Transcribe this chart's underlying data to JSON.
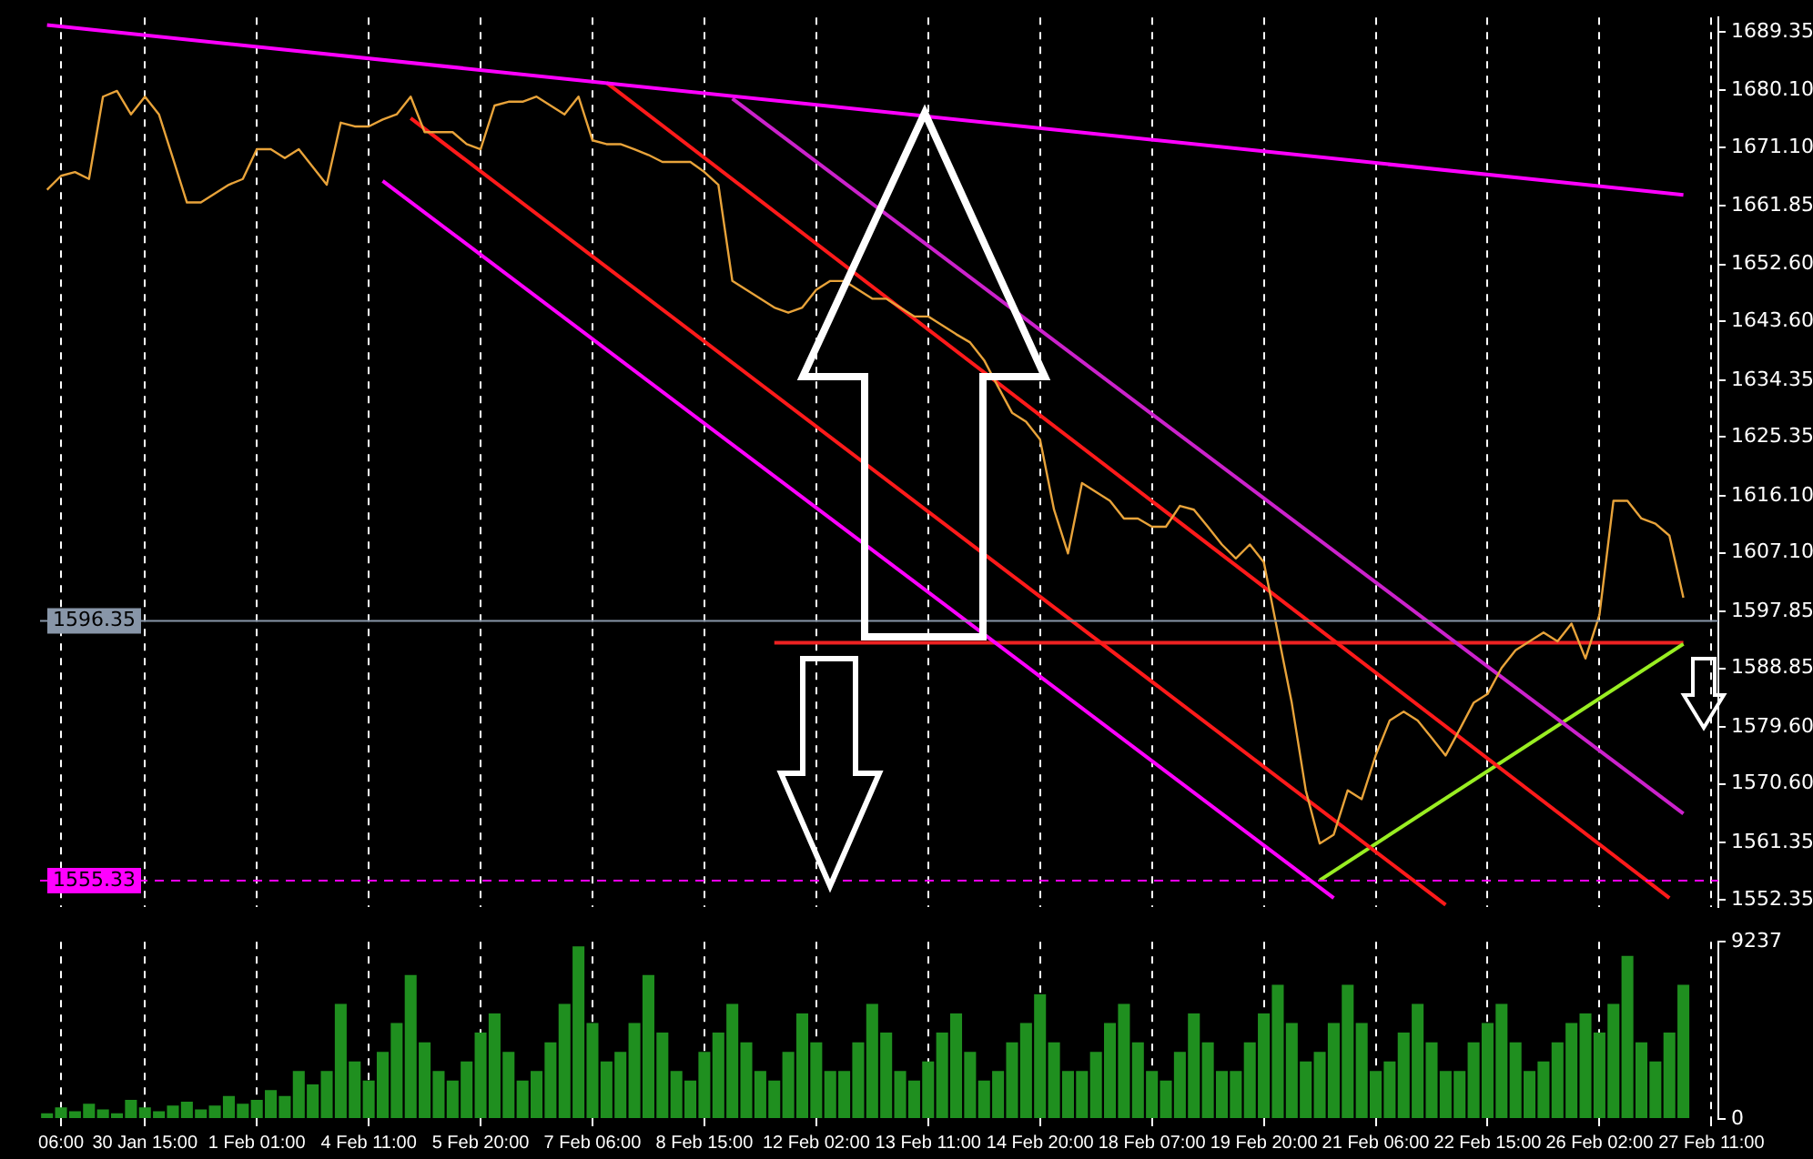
{
  "chart_data": [
    {
      "type": "line",
      "marker": "none",
      "grid": "x",
      "tick_labels": "y",
      "ylim": [
        1551.2,
        1691.6
      ],
      "yticks": [
        {
          "value": 1552.35,
          "label": "1552.35"
        },
        {
          "value": 1561.35,
          "label": "1561.35"
        },
        {
          "value": 1570.6,
          "label": "1570.60"
        },
        {
          "value": 1579.6,
          "label": "1579.60"
        },
        {
          "value": 1588.85,
          "label": "1588.85"
        },
        {
          "value": 1597.85,
          "label": "1597.85"
        },
        {
          "value": 1607.1,
          "label": "1607.10"
        },
        {
          "value": 1616.1,
          "label": "1616.10"
        },
        {
          "value": 1625.35,
          "label": "1625.35"
        },
        {
          "value": 1634.35,
          "label": "1634.35"
        },
        {
          "value": 1643.6,
          "label": "1643.60"
        },
        {
          "value": 1652.6,
          "label": "1652.60"
        },
        {
          "value": 1661.85,
          "label": "1661.85"
        },
        {
          "value": 1671.1,
          "label": "1671.10"
        },
        {
          "value": 1680.1,
          "label": "1680.10"
        },
        {
          "value": 1689.35,
          "label": "1689.35"
        }
      ],
      "series": [
        {
          "color": "#e8a33a",
          "values": [
            1664.4,
            1666.6,
            1667.2,
            1666.1,
            1679.1,
            1680.0,
            1676.3,
            1679.1,
            1676.3,
            1669.4,
            1662.4,
            1662.4,
            1663.8,
            1665.2,
            1666.1,
            1670.8,
            1670.8,
            1669.4,
            1670.8,
            1668.0,
            1665.2,
            1675.0,
            1674.4,
            1674.4,
            1675.5,
            1676.3,
            1679.1,
            1673.5,
            1673.5,
            1673.5,
            1671.6,
            1670.8,
            1677.7,
            1678.3,
            1678.3,
            1679.1,
            1677.7,
            1676.3,
            1679.1,
            1672.2,
            1671.6,
            1671.6,
            1670.8,
            1669.9,
            1668.8,
            1668.8,
            1668.8,
            1667.2,
            1665.2,
            1650.0,
            1648.6,
            1647.2,
            1645.8,
            1645.0,
            1645.8,
            1648.6,
            1650.0,
            1650.0,
            1648.6,
            1647.2,
            1647.2,
            1645.8,
            1644.4,
            1644.4,
            1643.0,
            1641.6,
            1640.3,
            1637.5,
            1633.3,
            1629.2,
            1627.8,
            1625.0,
            1613.9,
            1607.0,
            1618.1,
            1616.7,
            1615.3,
            1612.5,
            1612.5,
            1611.2,
            1611.2,
            1614.5,
            1613.9,
            1611.2,
            1608.4,
            1606.2,
            1608.4,
            1605.6,
            1594.5,
            1583.4,
            1569.6,
            1561.2,
            1562.6,
            1569.6,
            1568.2,
            1575.1,
            1580.6,
            1582.0,
            1580.6,
            1577.9,
            1575.1,
            1579.2,
            1583.4,
            1584.8,
            1588.9,
            1591.7,
            1593.1,
            1594.5,
            1593.1,
            1595.9,
            1590.4,
            1597.3,
            1615.3,
            1615.3,
            1612.5,
            1611.7,
            1609.8,
            1600.0,
            null,
            null
          ]
        },
        {
          "type": "line",
          "color": "#ff00ff",
          "values": [
            1690.4,
            null,
            null,
            null,
            null,
            null,
            null,
            null,
            null,
            null,
            null,
            null,
            null,
            null,
            null,
            null,
            null,
            null,
            null,
            null,
            null,
            null,
            null,
            null,
            null,
            null,
            null,
            null,
            null,
            null,
            null,
            null,
            null,
            null,
            null,
            null,
            null,
            null,
            null,
            null,
            null,
            null,
            null,
            null,
            null,
            null,
            null,
            null,
            null,
            null,
            null,
            null,
            null,
            null,
            null,
            null,
            null,
            null,
            null,
            null,
            null,
            null,
            null,
            null,
            null,
            null,
            null,
            null,
            null,
            null,
            null,
            null,
            null,
            null,
            null,
            null,
            null,
            null,
            null,
            null,
            null,
            null,
            null,
            null,
            null,
            null,
            null,
            null,
            null,
            null,
            null,
            null,
            null,
            null,
            null,
            null,
            null,
            null,
            null,
            null,
            null,
            null,
            null,
            null,
            null,
            null,
            null,
            null,
            null,
            null,
            null,
            null,
            null,
            null,
            null,
            null,
            null,
            1663.6,
            null,
            null
          ]
        },
        {
          "type": "line",
          "color": "#ff00ff",
          "values": [
            null,
            null,
            null,
            null,
            null,
            null,
            null,
            null,
            null,
            null,
            null,
            null,
            null,
            null,
            null,
            null,
            null,
            null,
            null,
            null,
            null,
            null,
            null,
            null,
            1665.8,
            null,
            null,
            null,
            null,
            null,
            null,
            null,
            null,
            null,
            null,
            null,
            null,
            null,
            null,
            null,
            null,
            null,
            null,
            null,
            null,
            null,
            null,
            null,
            null,
            null,
            null,
            null,
            null,
            null,
            null,
            null,
            null,
            null,
            null,
            null,
            null,
            null,
            null,
            null,
            null,
            null,
            null,
            null,
            null,
            null,
            null,
            null,
            null,
            null,
            null,
            null,
            null,
            null,
            null,
            null,
            null,
            null,
            null,
            null,
            null,
            null,
            null,
            null,
            null,
            null,
            null,
            null,
            1552.6,
            null,
            null,
            null,
            null,
            null,
            null,
            null,
            null,
            null,
            null,
            null,
            null,
            null,
            null,
            null,
            null,
            null,
            null,
            null,
            null,
            null,
            null,
            null,
            null,
            null,
            null,
            null
          ]
        },
        {
          "type": "line",
          "color": "#cc22cc",
          "values": [
            null,
            null,
            null,
            null,
            null,
            null,
            null,
            null,
            null,
            null,
            null,
            null,
            null,
            null,
            null,
            null,
            null,
            null,
            null,
            null,
            null,
            null,
            null,
            null,
            null,
            null,
            null,
            null,
            null,
            null,
            null,
            null,
            null,
            null,
            null,
            null,
            null,
            null,
            null,
            null,
            null,
            null,
            null,
            null,
            null,
            null,
            null,
            null,
            null,
            1678.8,
            null,
            null,
            null,
            null,
            null,
            null,
            null,
            null,
            null,
            null,
            null,
            null,
            null,
            null,
            null,
            null,
            null,
            null,
            null,
            null,
            null,
            null,
            null,
            null,
            null,
            null,
            null,
            null,
            null,
            null,
            null,
            null,
            null,
            null,
            null,
            null,
            null,
            null,
            null,
            null,
            null,
            null,
            null,
            null,
            null,
            null,
            null,
            null,
            null,
            null,
            null,
            null,
            null,
            null,
            null,
            null,
            null,
            null,
            null,
            null,
            null,
            null,
            null,
            null,
            null,
            null,
            null,
            1565.9,
            null,
            null
          ]
        },
        {
          "type": "line",
          "color": "#ff1a1a",
          "values": [
            null,
            null,
            null,
            null,
            null,
            null,
            null,
            null,
            null,
            null,
            null,
            null,
            null,
            null,
            null,
            null,
            null,
            null,
            null,
            null,
            null,
            null,
            null,
            null,
            null,
            null,
            null,
            null,
            null,
            null,
            null,
            null,
            null,
            null,
            null,
            null,
            null,
            null,
            null,
            null,
            1681.3,
            null,
            null,
            null,
            null,
            null,
            null,
            null,
            null,
            null,
            null,
            null,
            null,
            null,
            null,
            null,
            null,
            null,
            null,
            null,
            null,
            null,
            null,
            null,
            null,
            null,
            null,
            null,
            null,
            null,
            null,
            null,
            null,
            null,
            null,
            null,
            null,
            null,
            null,
            null,
            null,
            null,
            null,
            null,
            null,
            null,
            null,
            null,
            null,
            null,
            null,
            null,
            null,
            null,
            null,
            null,
            null,
            null,
            null,
            null,
            null,
            null,
            null,
            null,
            null,
            null,
            null,
            null,
            null,
            null,
            null,
            null,
            null,
            null,
            null,
            null,
            1552.6,
            null,
            null,
            null
          ]
        },
        {
          "type": "line",
          "color": "#ff1a1a",
          "values": [
            null,
            null,
            null,
            null,
            null,
            null,
            null,
            null,
            null,
            null,
            null,
            null,
            null,
            null,
            null,
            null,
            null,
            null,
            null,
            null,
            null,
            null,
            null,
            null,
            null,
            null,
            1675.7,
            null,
            null,
            null,
            null,
            null,
            null,
            null,
            null,
            null,
            null,
            null,
            null,
            null,
            null,
            null,
            null,
            null,
            null,
            null,
            null,
            null,
            null,
            null,
            null,
            null,
            null,
            null,
            null,
            null,
            null,
            null,
            null,
            null,
            null,
            null,
            null,
            null,
            null,
            null,
            null,
            null,
            null,
            null,
            null,
            null,
            null,
            null,
            null,
            null,
            null,
            null,
            null,
            null,
            null,
            null,
            null,
            null,
            null,
            null,
            null,
            null,
            null,
            null,
            null,
            null,
            null,
            null,
            null,
            null,
            null,
            null,
            null,
            null,
            1551.5,
            null,
            null,
            null,
            null,
            null,
            null,
            null,
            null,
            null,
            null,
            null,
            null,
            null,
            null,
            null,
            null,
            null,
            null,
            null
          ]
        },
        {
          "type": "line",
          "color": "#99ee22",
          "values": [
            null,
            null,
            null,
            null,
            null,
            null,
            null,
            null,
            null,
            null,
            null,
            null,
            null,
            null,
            null,
            null,
            null,
            null,
            null,
            null,
            null,
            null,
            null,
            null,
            null,
            null,
            null,
            null,
            null,
            null,
            null,
            null,
            null,
            null,
            null,
            null,
            null,
            null,
            null,
            null,
            null,
            null,
            null,
            null,
            null,
            null,
            null,
            null,
            null,
            null,
            null,
            null,
            null,
            null,
            null,
            null,
            null,
            null,
            null,
            null,
            null,
            null,
            null,
            null,
            null,
            null,
            null,
            null,
            null,
            null,
            null,
            null,
            null,
            null,
            null,
            null,
            null,
            null,
            null,
            null,
            null,
            null,
            null,
            null,
            null,
            null,
            null,
            null,
            null,
            null,
            null,
            1555.4,
            null,
            null,
            null,
            null,
            null,
            null,
            null,
            null,
            null,
            null,
            null,
            null,
            null,
            null,
            null,
            null,
            null,
            null,
            null,
            null,
            null,
            null,
            null,
            null,
            null,
            1592.7,
            null,
            null
          ]
        },
        {
          "type": "line",
          "color": "#ee2222",
          "values": [
            null,
            null,
            null,
            null,
            null,
            null,
            null,
            null,
            null,
            null,
            null,
            null,
            null,
            null,
            null,
            null,
            null,
            null,
            null,
            null,
            null,
            null,
            null,
            null,
            null,
            null,
            null,
            null,
            null,
            null,
            null,
            null,
            null,
            null,
            null,
            null,
            null,
            null,
            null,
            null,
            null,
            null,
            null,
            null,
            null,
            null,
            null,
            null,
            null,
            null,
            null,
            null,
            1592.9,
            null,
            null,
            null,
            null,
            null,
            null,
            null,
            null,
            null,
            null,
            null,
            null,
            null,
            null,
            null,
            null,
            null,
            null,
            null,
            null,
            null,
            null,
            null,
            null,
            null,
            null,
            null,
            null,
            null,
            null,
            null,
            null,
            null,
            null,
            null,
            null,
            null,
            null,
            null,
            null,
            null,
            null,
            null,
            null,
            null,
            null,
            null,
            null,
            null,
            null,
            null,
            null,
            null,
            null,
            null,
            null,
            null,
            null,
            null,
            null,
            null,
            null,
            null,
            null,
            1592.9,
            null,
            null
          ]
        }
      ],
      "ref_lines": [
        {
          "axis": "y",
          "value": 1596.35,
          "label": "1596.35",
          "color": "#8896a8",
          "line_style": "solid"
        },
        {
          "axis": "y",
          "value": 1555.33,
          "label": "1555.33",
          "color": "#ff00ff",
          "line_style": "dashed"
        }
      ]
    },
    {
      "type": "bar",
      "grid": "x",
      "color": "#1f8f1f",
      "categories": [
        null,
        "06:00",
        null,
        null,
        null,
        null,
        null,
        "30 Jan 15:00",
        null,
        null,
        null,
        null,
        null,
        null,
        null,
        "1 Feb 01:00",
        null,
        null,
        null,
        null,
        null,
        null,
        null,
        "4 Feb 11:00",
        null,
        null,
        null,
        null,
        null,
        null,
        null,
        "5 Feb 20:00",
        null,
        null,
        null,
        null,
        null,
        null,
        null,
        "7 Feb 06:00",
        null,
        null,
        null,
        null,
        null,
        null,
        null,
        "8 Feb 15:00",
        null,
        null,
        null,
        null,
        null,
        null,
        null,
        "12 Feb 02:00",
        null,
        null,
        null,
        null,
        null,
        null,
        null,
        "13 Feb 11:00",
        null,
        null,
        null,
        null,
        null,
        null,
        null,
        "14 Feb 20:00",
        null,
        null,
        null,
        null,
        null,
        null,
        null,
        "18 Feb 07:00",
        null,
        null,
        null,
        null,
        null,
        null,
        null,
        "19 Feb 20:00",
        null,
        null,
        null,
        null,
        null,
        null,
        null,
        "21 Feb 06:00",
        null,
        null,
        null,
        null,
        null,
        null,
        null,
        "22 Feb 15:00",
        null,
        null,
        null,
        null,
        null,
        null,
        null,
        "26 Feb 02:00",
        null,
        null,
        null,
        null,
        null,
        null,
        null,
        "27 Feb 11:00"
      ],
      "ylim": [
        0,
        9237
      ],
      "yticks": [
        0,
        9237
      ],
      "values": [
        300,
        600,
        400,
        800,
        500,
        300,
        1000,
        600,
        400,
        700,
        900,
        500,
        700,
        1200,
        800,
        1000,
        1500,
        1200,
        2500,
        1800,
        2500,
        6000,
        3000,
        2000,
        3500,
        5000,
        7500,
        4000,
        2500,
        2000,
        3000,
        4500,
        5500,
        3500,
        2000,
        2500,
        4000,
        6000,
        9000,
        5000,
        3000,
        3500,
        5000,
        7500,
        4500,
        2500,
        2000,
        3500,
        4500,
        6000,
        4000,
        2500,
        2000,
        3500,
        5500,
        4000,
        2500,
        2500,
        4000,
        6000,
        4500,
        2500,
        2000,
        3000,
        4500,
        5500,
        3500,
        2000,
        2500,
        4000,
        5000,
        6500,
        4000,
        2500,
        2500,
        3500,
        5000,
        6000,
        4000,
        2500,
        2000,
        3500,
        5500,
        4000,
        2500,
        2500,
        4000,
        5500,
        7000,
        5000,
        3000,
        3500,
        5000,
        7000,
        5000,
        2500,
        3000,
        4500,
        6000,
        4000,
        2500,
        2500,
        4000,
        5000,
        6000,
        4000,
        2500,
        3000,
        4000,
        5000,
        5500,
        4500,
        6000,
        8500,
        4000,
        3000,
        4500,
        7000,
        null,
        null
      ]
    }
  ]
}
